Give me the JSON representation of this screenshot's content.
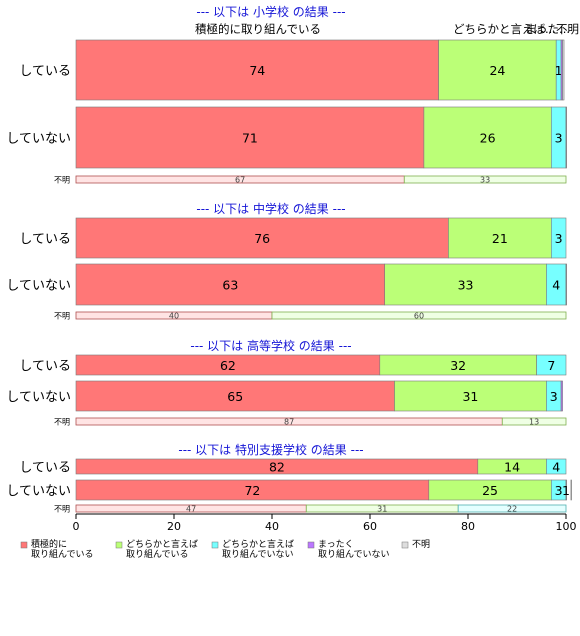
{
  "chart_data": {
    "type": "bar",
    "orientation": "horizontal",
    "stacked": true,
    "xlim": [
      0,
      100
    ],
    "x_ticks": [
      0,
      20,
      40,
      60,
      80,
      100
    ],
    "series_legend": [
      {
        "label": "積極的に\n取り組んでいる",
        "color": "#ff7777"
      },
      {
        "label": "どちらかと言えば\n取り組んでいる",
        "color": "#bbff77"
      },
      {
        "label": "どちらかと言えば\n取り組んでいない",
        "color": "#77ffff"
      },
      {
        "label": "まったく\n取り組んでいない",
        "color": "#bb77ff"
      },
      {
        "label": "不明",
        "color": "#dddddd"
      }
    ],
    "top_labels": [
      "積極的に取り組んでいる",
      "どちらかと言えば...",
      "まった...",
      "不明"
    ],
    "panels": [
      {
        "title": "--- 以下は 小学校 の結果 ---",
        "rows": [
          {
            "label": "している",
            "values": [
              74,
              24,
              1,
              0.3,
              0.3
            ],
            "labels": [
              "74",
              "24",
              "1",
              "",
              ""
            ]
          },
          {
            "label": "していない",
            "values": [
              71,
              26,
              3,
              0.3,
              0
            ],
            "labels": [
              "71",
              "26",
              "3",
              "",
              ""
            ]
          },
          {
            "label": "不明",
            "small": true,
            "values": [
              67,
              33,
              0,
              0,
              0
            ],
            "labels": [
              "67",
              "33",
              "",
              "",
              ""
            ]
          }
        ]
      },
      {
        "title": "--- 以下は 中学校 の結果 ---",
        "rows": [
          {
            "label": "している",
            "values": [
              76,
              21,
              3,
              0,
              0
            ],
            "labels": [
              "76",
              "21",
              "3",
              "",
              ""
            ]
          },
          {
            "label": "していない",
            "values": [
              63,
              33,
              4,
              0.3,
              0
            ],
            "labels": [
              "63",
              "33",
              "4",
              "",
              ""
            ]
          },
          {
            "label": "不明",
            "small": true,
            "values": [
              40,
              60,
              0,
              0,
              0
            ],
            "labels": [
              "40",
              "60",
              "",
              "",
              ""
            ]
          }
        ]
      },
      {
        "title": "--- 以下は 高等学校 の結果 ---",
        "rows": [
          {
            "label": "している",
            "values": [
              62,
              32,
              7,
              0,
              0
            ],
            "labels": [
              "62",
              "32",
              "7",
              "",
              ""
            ]
          },
          {
            "label": "していない",
            "values": [
              65,
              31,
              3,
              0.3,
              0
            ],
            "labels": [
              "65",
              "31",
              "3",
              "",
              ""
            ]
          },
          {
            "label": "不明",
            "small": true,
            "values": [
              87,
              13,
              0,
              0,
              0
            ],
            "labels": [
              "87",
              "13",
              "",
              "",
              ""
            ]
          }
        ]
      },
      {
        "title": "--- 以下は 特別支援学校 の結果 ---",
        "rows": [
          {
            "label": "している",
            "values": [
              82,
              14,
              4,
              0,
              0
            ],
            "labels": [
              "82",
              "14",
              "4",
              "",
              ""
            ]
          },
          {
            "label": "していない",
            "values": [
              72,
              25,
              3,
              1,
              0.3
            ],
            "labels": [
              "72",
              "25",
              "3",
              "1",
              ""
            ]
          },
          {
            "label": "不明",
            "small": true,
            "values": [
              47,
              31,
              22,
              0,
              0
            ],
            "labels": [
              "47",
              "31",
              "22",
              "",
              ""
            ]
          }
        ]
      }
    ]
  }
}
